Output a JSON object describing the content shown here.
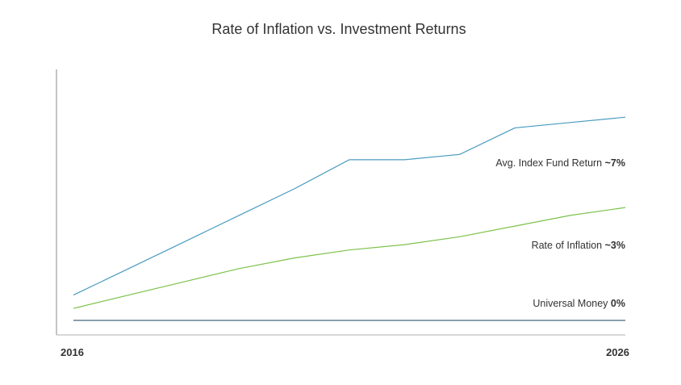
{
  "chart_data": {
    "type": "line",
    "title": "Rate of Inflation vs. Investment Returns",
    "xlabel": "",
    "ylabel": "",
    "x": [
      "2016",
      "2017",
      "2018",
      "2019",
      "2020",
      "2021",
      "2022",
      "2023",
      "2024",
      "2025",
      "2026"
    ],
    "x_tick_labels": [
      "2016",
      "2026"
    ],
    "ylim": [
      0,
      1
    ],
    "grid": false,
    "series": [
      {
        "name": "Avg. Index Fund Return",
        "rate_label": "~7%",
        "color": "#4a9bc0",
        "values": [
          0.15,
          0.25,
          0.35,
          0.45,
          0.55,
          0.66,
          0.66,
          0.68,
          0.78,
          0.8,
          0.82
        ]
      },
      {
        "name": "Rate of Inflation",
        "rate_label": "~3%",
        "color": "#7cc24a",
        "values": [
          0.1,
          0.15,
          0.2,
          0.25,
          0.29,
          0.32,
          0.34,
          0.37,
          0.41,
          0.45,
          0.48
        ]
      },
      {
        "name": "Universal Money",
        "rate_label": "0%",
        "color": "#6f8a96",
        "values": [
          0.055,
          0.055,
          0.055,
          0.055,
          0.055,
          0.055,
          0.055,
          0.055,
          0.055,
          0.055,
          0.055
        ]
      }
    ]
  }
}
